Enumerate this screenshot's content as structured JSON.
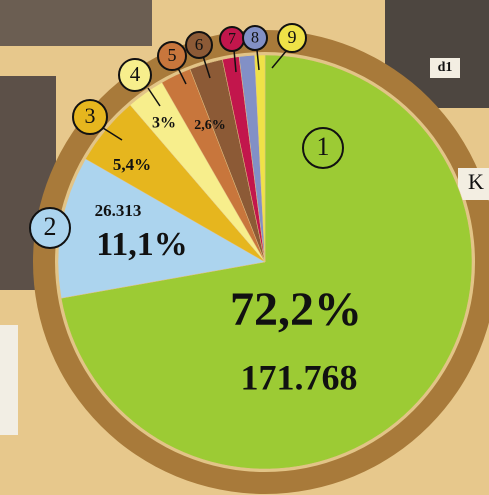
{
  "chart_data": {
    "type": "pie",
    "categories": [
      "1",
      "2",
      "3",
      "4",
      "5",
      "6",
      "7",
      "8",
      "9"
    ],
    "values": [
      72.2,
      11.1,
      5.4,
      3,
      2.4,
      2.6,
      1.3,
      1.2,
      0.8
    ],
    "value_labels": [
      "72,2%",
      "11,1%",
      "5,4%",
      "3%",
      null,
      "2,6%",
      null,
      null,
      null
    ],
    "counts": [
      171768,
      26313,
      null,
      null,
      null,
      null,
      null,
      null,
      null
    ],
    "count_labels": [
      "171.768",
      "26.313",
      null,
      null,
      null,
      null,
      null,
      null,
      null
    ],
    "colors": [
      "#9ccb34",
      "#acd4ee",
      "#e6b61e",
      "#f7ee8c",
      "#c8763c",
      "#8c5a36",
      "#c2164c",
      "#8290c6",
      "#efe247"
    ],
    "annotations": [
      "K",
      "d1"
    ]
  }
}
